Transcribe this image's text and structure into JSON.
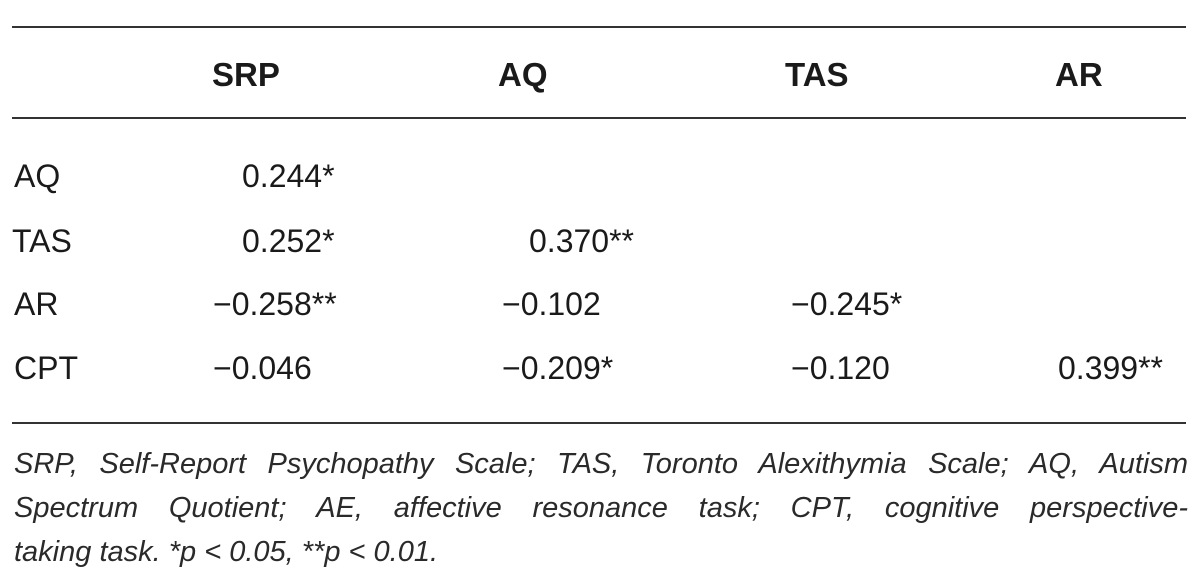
{
  "table": {
    "headers": [
      "SRP",
      "AQ",
      "TAS",
      "AR"
    ],
    "rows": [
      {
        "label": "AQ",
        "cells": [
          "0.244*",
          "",
          "",
          ""
        ]
      },
      {
        "label": "TAS",
        "cells": [
          "0.252*",
          "0.370**",
          "",
          ""
        ]
      },
      {
        "label": "AR",
        "cells": [
          "−0.258**",
          "−0.102",
          "−0.245*",
          ""
        ]
      },
      {
        "label": "CPT",
        "cells": [
          "−0.046",
          "−0.209*",
          "−0.120",
          "0.399**"
        ]
      }
    ]
  },
  "caption": {
    "line1": "SRP, Self-Report Psychopathy Scale; TAS, Toronto Alexithymia Scale; AQ, Autism",
    "line2": "Spectrum Quotient; AE, affective resonance task; CPT, cognitive perspective-",
    "line3": "taking task. *p < 0.05, **p < 0.01."
  }
}
